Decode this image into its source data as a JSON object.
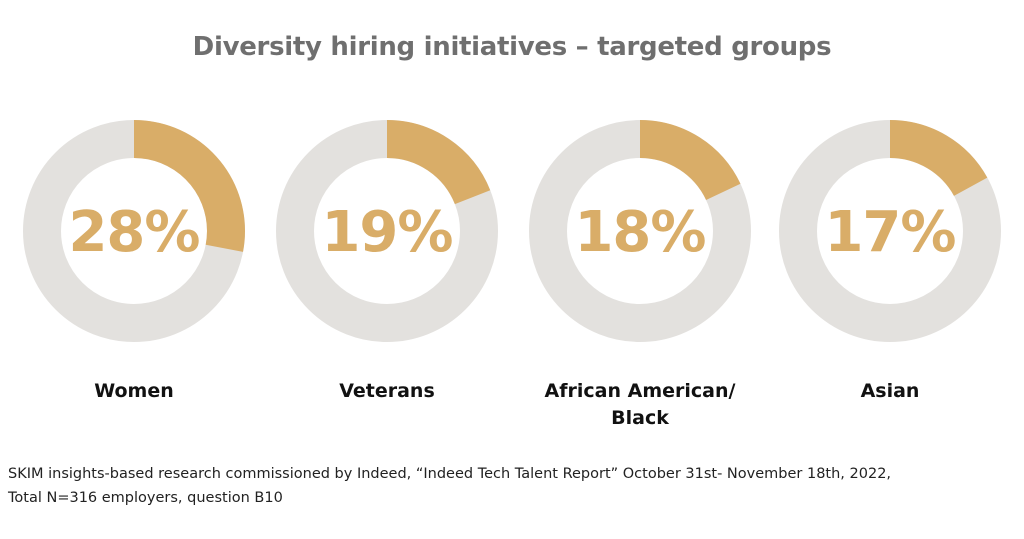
{
  "chart_data": {
    "type": "pie",
    "title": "Diversity hiring initiatives – targeted groups",
    "categories": [
      "Women",
      "Veterans",
      "African American/ Black",
      "Asian"
    ],
    "values": [
      28,
      19,
      18,
      17
    ],
    "value_labels": [
      "28%",
      "19%",
      "18%",
      "17%"
    ],
    "max": 100
  },
  "colors": {
    "fill": "#d9ad68",
    "track": "#e3e1de",
    "title": "#6f6f6f"
  },
  "footnote": {
    "line1": "SKIM insights-based research commissioned by Indeed, “Indeed Tech Talent Report” October 31st- November 18th, 2022,",
    "line2": "Total N=316 employers, question B10"
  }
}
